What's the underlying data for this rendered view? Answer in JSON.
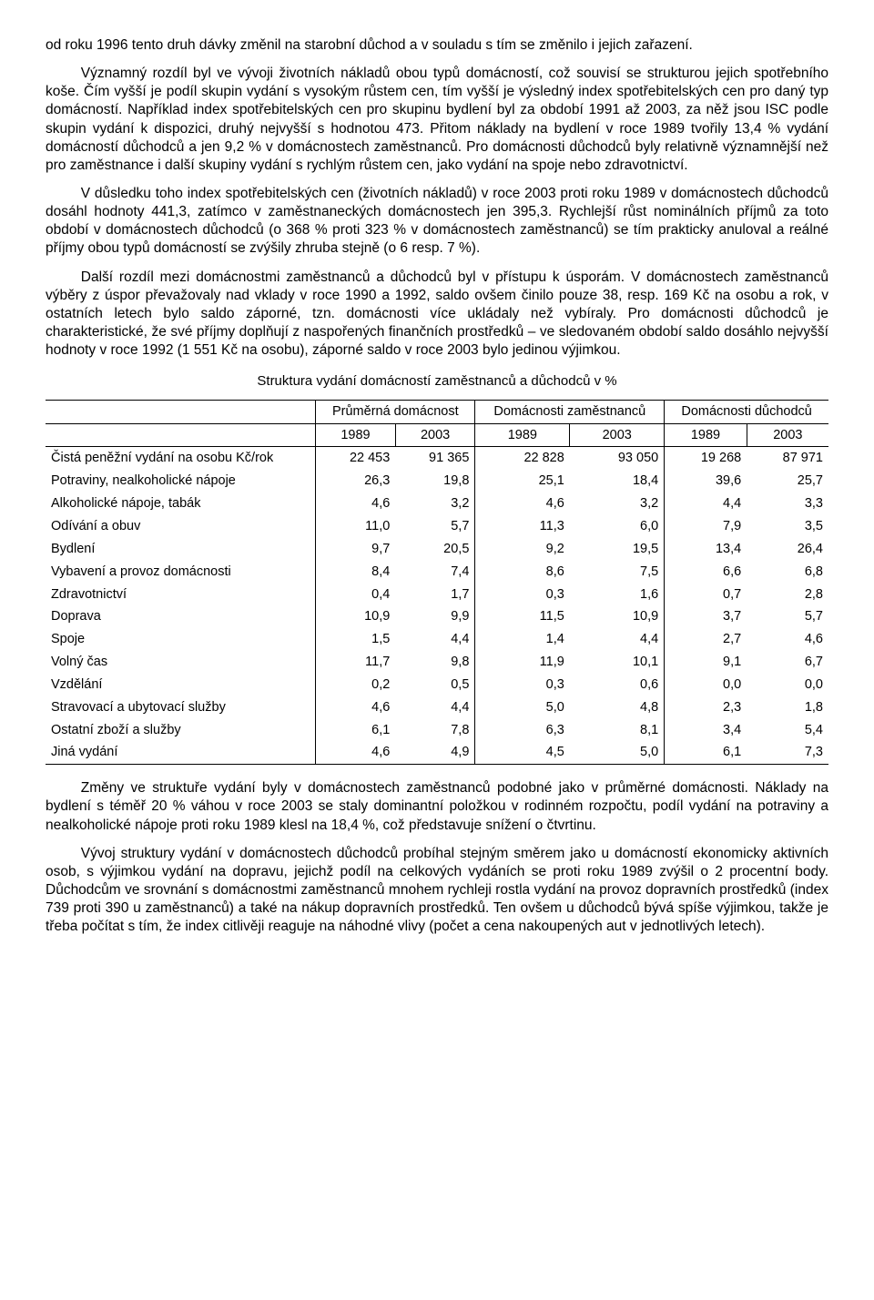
{
  "paragraphs": {
    "p1": "od roku 1996 tento druh dávky změnil na starobní důchod a v souladu s tím se změnilo i jejich zařazení.",
    "p2": "Významný rozdíl byl ve vývoji životních nákladů obou typů domácností, což souvisí se strukturou jejich spotřebního koše. Čím vyšší je podíl skupin vydání s vysokým růstem cen, tím vyšší je výsledný index spotřebitelských cen pro daný typ domácností. Například index spotřebitelských cen pro skupinu bydlení byl za období 1991 až 2003, za něž jsou ISC podle skupin vydání k dispozici, druhý nejvyšší s hodnotou 473. Přitom náklady na bydlení v roce 1989 tvořily 13,4 % vydání domácností důchodců a jen 9,2 % v domácnostech zaměstnanců. Pro domácnosti důchodců byly relativně významnější než pro zaměstnance i další skupiny vydání s rychlým růstem cen, jako vydání na spoje nebo zdravotnictví.",
    "p3": "V důsledku toho index spotřebitelských cen (životních nákladů) v roce 2003 proti roku 1989 v domácnostech důchodců dosáhl hodnoty 441,3, zatímco v zaměstnaneckých domácnostech jen 395,3. Rychlejší růst nominálních příjmů za toto období v domácnostech důchodců (o 368 % proti 323 % v domácnostech zaměstnanců) se tím prakticky anuloval a reálné příjmy obou typů domácností se zvýšily zhruba stejně (o 6 resp. 7 %).",
    "p4": "Další rozdíl mezi domácnostmi zaměstnanců a důchodců byl v přístupu k úsporám. V domácnostech zaměstnanců výběry z úspor převažovaly nad vklady v roce 1990 a 1992, saldo ovšem činilo pouze 38, resp. 169 Kč na osobu a rok, v ostatních letech bylo saldo záporné, tzn. domácnosti více ukládaly než vybíraly. Pro domácnosti důchodců je charakteristické, že své příjmy doplňují z naspořených finančních prostředků – ve sledovaném období saldo dosáhlo nejvyšší hodnoty v roce 1992 (1 551 Kč na osobu), záporné saldo v roce 2003 bylo jedinou výjimkou.",
    "p5": "Změny ve struktuře vydání byly v domácnostech zaměstnanců podobné jako v průměrné domácnosti. Náklady na bydlení s téměř 20 % váhou v roce 2003 se staly dominantní položkou v rodinném rozpočtu, podíl vydání na potraviny a nealkoholické nápoje proti roku 1989 klesl na 18,4 %, což představuje snížení o čtvrtinu.",
    "p6": "Vývoj struktury vydání v domácnostech důchodců probíhal stejným směrem jako u domácností ekonomicky aktivních osob, s výjimkou vydání na dopravu, jejichž podíl na celkových vydáních se proti roku 1989 zvýšil o 2 procentní body. Důchodcům ve srovnání s domácnostmi zaměstnanců mnohem rychleji rostla vydání na provoz dopravních prostředků (index 739 proti 390 u zaměstnanců) a také na nákup dopravních prostředků. Ten ovšem u důchodců bývá spíše výjimkou, takže je třeba počítat s tím, že index citlivěji reaguje na náhodné vlivy (počet a cena nakoupených aut v jednotlivých letech)."
  },
  "table": {
    "title": "Struktura vydání domácností zaměstnanců a důchodců  v %",
    "groups": [
      "Průměrná domácnost",
      "Domácnosti zaměstnanců",
      "Domácnosti důchodců"
    ],
    "years": [
      "1989",
      "2003",
      "1989",
      "2003",
      "1989",
      "2003"
    ],
    "rows": [
      {
        "label": "Čistá peněžní vydání na osobu Kč/rok",
        "v": [
          "22 453",
          "91 365",
          "22 828",
          "93 050",
          "19 268",
          "87 971"
        ]
      },
      {
        "label": "Potraviny, nealkoholické nápoje",
        "v": [
          "26,3",
          "19,8",
          "25,1",
          "18,4",
          "39,6",
          "25,7"
        ]
      },
      {
        "label": "Alkoholické nápoje, tabák",
        "v": [
          "4,6",
          "3,2",
          "4,6",
          "3,2",
          "4,4",
          "3,3"
        ]
      },
      {
        "label": "Odívání a obuv",
        "v": [
          "11,0",
          "5,7",
          "11,3",
          "6,0",
          "7,9",
          "3,5"
        ]
      },
      {
        "label": "Bydlení",
        "v": [
          "9,7",
          "20,5",
          "9,2",
          "19,5",
          "13,4",
          "26,4"
        ]
      },
      {
        "label": "Vybavení a provoz domácnosti",
        "v": [
          "8,4",
          "7,4",
          "8,6",
          "7,5",
          "6,6",
          "6,8"
        ]
      },
      {
        "label": "Zdravotnictví",
        "v": [
          "0,4",
          "1,7",
          "0,3",
          "1,6",
          "0,7",
          "2,8"
        ]
      },
      {
        "label": "Doprava",
        "v": [
          "10,9",
          "9,9",
          "11,5",
          "10,9",
          "3,7",
          "5,7"
        ]
      },
      {
        "label": "Spoje",
        "v": [
          "1,5",
          "4,4",
          "1,4",
          "4,4",
          "2,7",
          "4,6"
        ]
      },
      {
        "label": "Volný čas",
        "v": [
          "11,7",
          "9,8",
          "11,9",
          "10,1",
          "9,1",
          "6,7"
        ]
      },
      {
        "label": "Vzdělání",
        "v": [
          "0,2",
          "0,5",
          "0,3",
          "0,6",
          "0,0",
          "0,0"
        ]
      },
      {
        "label": "Stravovací a ubytovací služby",
        "v": [
          "4,6",
          "4,4",
          "5,0",
          "4,8",
          "2,3",
          "1,8"
        ]
      },
      {
        "label": "Ostatní zboží a služby",
        "v": [
          "6,1",
          "7,8",
          "6,3",
          "8,1",
          "3,4",
          "5,4"
        ]
      },
      {
        "label": "Jiná vydání",
        "v": [
          "4,6",
          "4,9",
          "4,5",
          "5,0",
          "6,1",
          "7,3"
        ]
      }
    ]
  }
}
